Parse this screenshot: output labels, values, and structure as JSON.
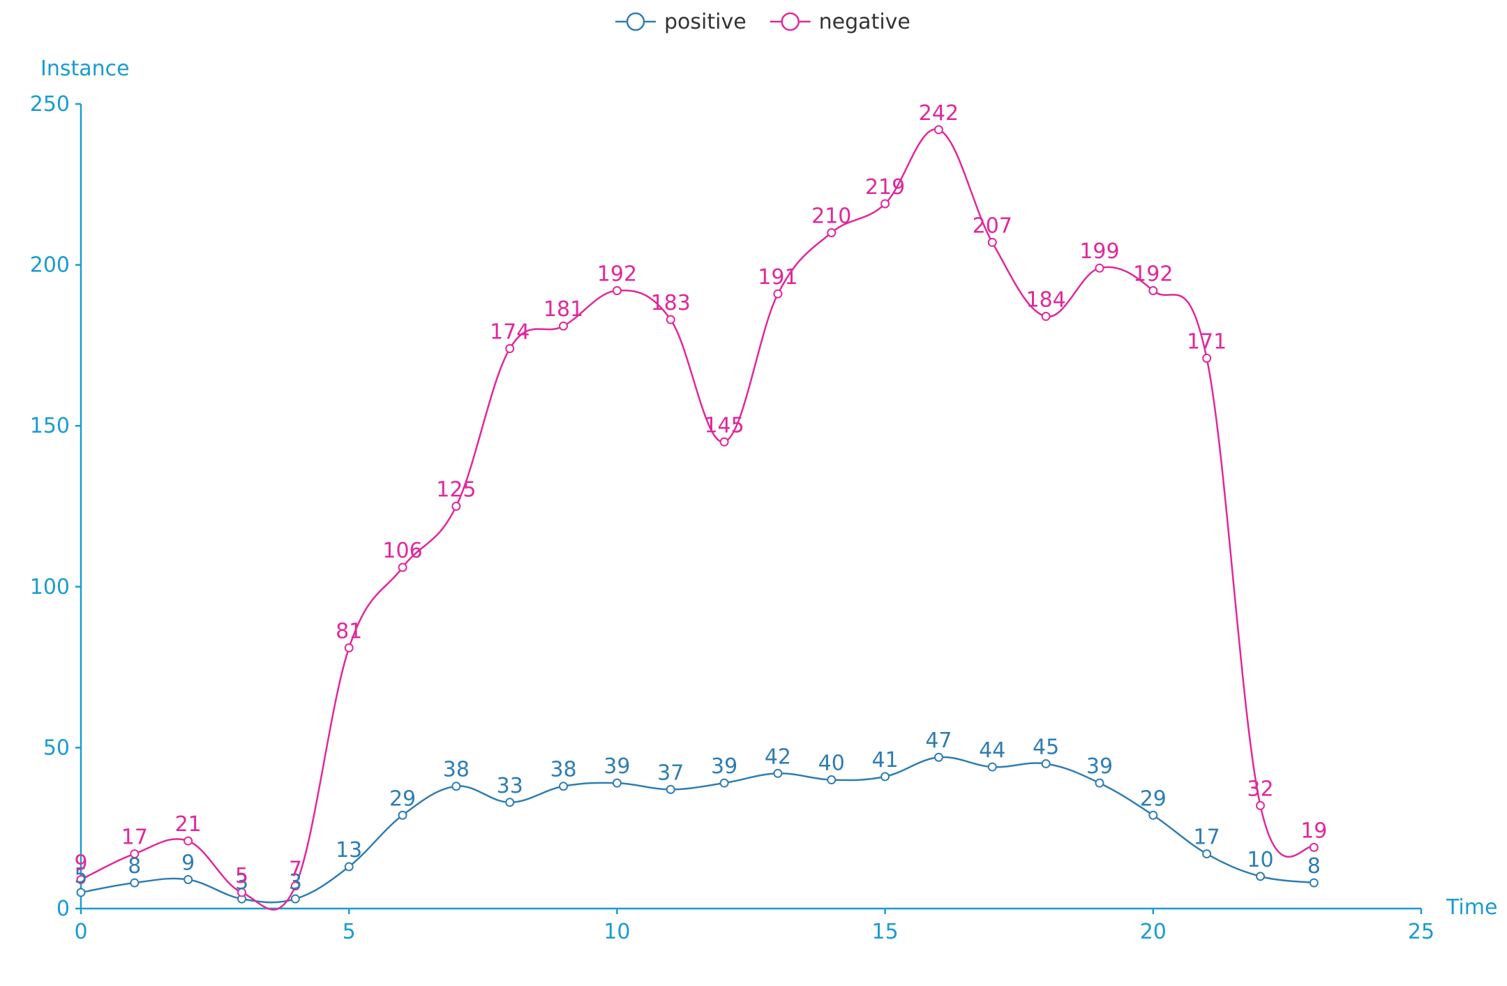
{
  "chart_data": {
    "type": "line",
    "smooth": true,
    "title": "",
    "xlabel": "Time",
    "ylabel": "Instance",
    "xlim": [
      0,
      25
    ],
    "ylim": [
      0,
      250
    ],
    "x_ticks": [
      0,
      5,
      10,
      15,
      20,
      25
    ],
    "y_ticks": [
      0,
      50,
      100,
      150,
      200,
      250
    ],
    "grid": false,
    "legend_position": "top-center",
    "axis_color": "#1a9bd1",
    "x": [
      0,
      1,
      2,
      3,
      4,
      5,
      6,
      7,
      8,
      9,
      10,
      11,
      12,
      13,
      14,
      15,
      16,
      17,
      18,
      19,
      20,
      21,
      22,
      23
    ],
    "series": [
      {
        "name": "positive",
        "color": "#2e7db2",
        "values": [
          5,
          8,
          9,
          3,
          3,
          13,
          29,
          38,
          33,
          38,
          39,
          37,
          39,
          42,
          40,
          41,
          47,
          44,
          45,
          39,
          29,
          17,
          10,
          8
        ]
      },
      {
        "name": "negative",
        "color": "#e0279c",
        "values": [
          9,
          17,
          21,
          5,
          7,
          81,
          106,
          125,
          174,
          181,
          192,
          183,
          145,
          191,
          210,
          219,
          242,
          207,
          184,
          199,
          192,
          171,
          32,
          19
        ]
      }
    ]
  }
}
